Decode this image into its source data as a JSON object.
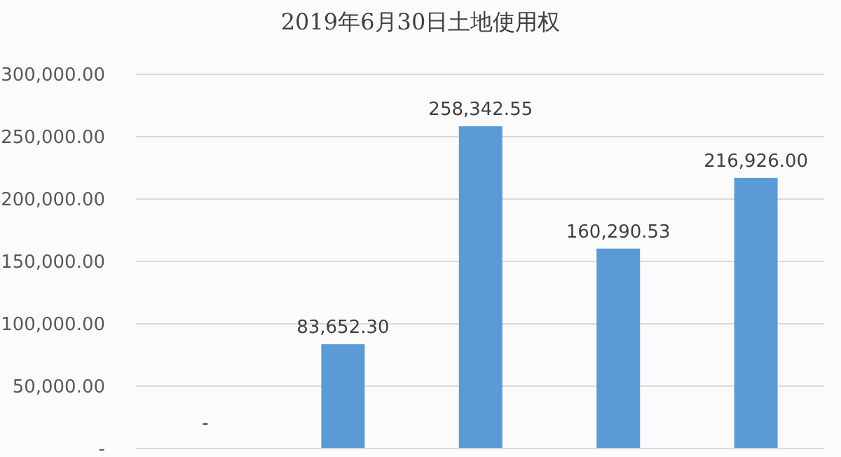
{
  "chart_data": {
    "type": "bar",
    "title": "2019年6月30日土地使用权",
    "categories": [
      null,
      null,
      null,
      null,
      null
    ],
    "values": [
      0,
      83652.3,
      258342.55,
      160290.53,
      216926.0
    ],
    "value_labels": [
      "-",
      "83,652.30",
      "258,342.55",
      "160,290.53",
      "216,926.00"
    ],
    "color": "#5b9bd5",
    "ylim": [
      0,
      300000
    ],
    "yticks": [
      {
        "value": 0,
        "label": "-"
      },
      {
        "value": 50000,
        "label": "50,000.00"
      },
      {
        "value": 100000,
        "label": "100,000.00"
      },
      {
        "value": 150000,
        "label": "150,000.00"
      },
      {
        "value": 200000,
        "label": "200,000.00"
      },
      {
        "value": 250000,
        "label": "250,000.00"
      },
      {
        "value": 300000,
        "label": "300,000.00"
      }
    ],
    "grid": "y",
    "tick_labels": "y"
  }
}
